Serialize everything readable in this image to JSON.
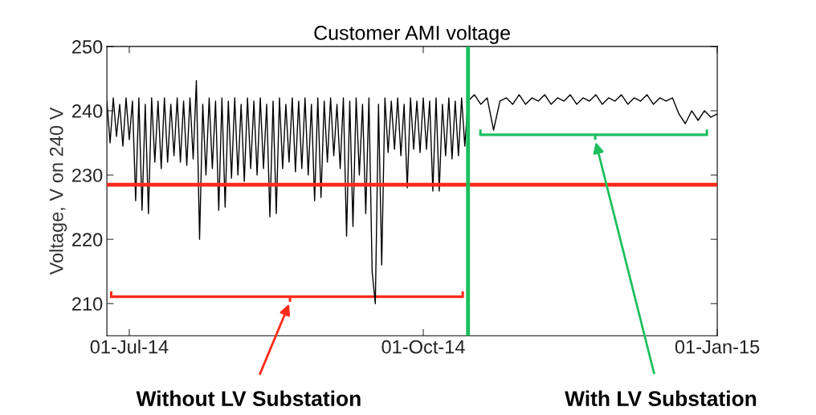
{
  "chart_data": {
    "type": "line",
    "title": "Customer AMI voltage",
    "ylabel": "Voltage, V on 240 V",
    "x": [
      "2014-06-24",
      "2014-06-25",
      "2014-06-26",
      "2014-06-27",
      "2014-06-28",
      "2014-06-29",
      "2014-06-30",
      "2014-07-01",
      "2014-07-02",
      "2014-07-03",
      "2014-07-04",
      "2014-07-05",
      "2014-07-06",
      "2014-07-07",
      "2014-07-08",
      "2014-07-09",
      "2014-07-10",
      "2014-07-11",
      "2014-07-12",
      "2014-07-13",
      "2014-07-14",
      "2014-07-15",
      "2014-07-16",
      "2014-07-17",
      "2014-07-18",
      "2014-07-19",
      "2014-07-20",
      "2014-07-21",
      "2014-07-22",
      "2014-07-23",
      "2014-07-24",
      "2014-07-25",
      "2014-07-26",
      "2014-07-27",
      "2014-07-28",
      "2014-07-29",
      "2014-07-30",
      "2014-07-31",
      "2014-08-01",
      "2014-08-02",
      "2014-08-03",
      "2014-08-04",
      "2014-08-05",
      "2014-08-06",
      "2014-08-07",
      "2014-08-08",
      "2014-08-09",
      "2014-08-10",
      "2014-08-11",
      "2014-08-12",
      "2014-08-13",
      "2014-08-14",
      "2014-08-15",
      "2014-08-16",
      "2014-08-17",
      "2014-08-18",
      "2014-08-19",
      "2014-08-20",
      "2014-08-21",
      "2014-08-22",
      "2014-08-23",
      "2014-08-24",
      "2014-08-25",
      "2014-08-26",
      "2014-08-27",
      "2014-08-28",
      "2014-08-29",
      "2014-08-30",
      "2014-08-31",
      "2014-09-01",
      "2014-09-02",
      "2014-09-03",
      "2014-09-04",
      "2014-09-05",
      "2014-09-06",
      "2014-09-07",
      "2014-09-08",
      "2014-09-09",
      "2014-09-10",
      "2014-09-11",
      "2014-09-12",
      "2014-09-13",
      "2014-09-14",
      "2014-09-15",
      "2014-09-16",
      "2014-09-17",
      "2014-09-18",
      "2014-09-19",
      "2014-09-20",
      "2014-09-21",
      "2014-09-22",
      "2014-09-23",
      "2014-09-24",
      "2014-09-25",
      "2014-09-26",
      "2014-09-27",
      "2014-09-28",
      "2014-09-29",
      "2014-09-30",
      "2014-10-01",
      "2014-10-02",
      "2014-10-03",
      "2014-10-04",
      "2014-10-05",
      "2014-10-06",
      "2014-10-07",
      "2014-10-08",
      "2014-10-09",
      "2014-10-10",
      "2014-10-11",
      "2014-10-12",
      "2014-10-13",
      "2014-10-14",
      "2014-10-15",
      "2014-10-17",
      "2014-10-19",
      "2014-10-21",
      "2014-10-23",
      "2014-10-25",
      "2014-10-27",
      "2014-10-29",
      "2014-10-31",
      "2014-11-02",
      "2014-11-04",
      "2014-11-06",
      "2014-11-08",
      "2014-11-10",
      "2014-11-12",
      "2014-11-14",
      "2014-11-16",
      "2014-11-18",
      "2014-11-20",
      "2014-11-22",
      "2014-11-24",
      "2014-11-26",
      "2014-11-28",
      "2014-11-30",
      "2014-12-02",
      "2014-12-04",
      "2014-12-06",
      "2014-12-08",
      "2014-12-10",
      "2014-12-12",
      "2014-12-14",
      "2014-12-16",
      "2014-12-18",
      "2014-12-20",
      "2014-12-22",
      "2014-12-24",
      "2014-12-26",
      "2014-12-28",
      "2014-12-30",
      "2015-01-01"
    ],
    "series": [
      {
        "color": "#000000",
        "values": [
          241.5,
          235,
          242,
          236,
          241,
          234.5,
          242,
          235.5,
          241.5,
          226,
          242,
          224.5,
          241,
          224,
          242,
          232,
          241.5,
          231,
          242,
          232,
          241,
          233,
          242,
          232,
          241.5,
          231.5,
          242,
          232.5,
          244.7,
          220,
          241,
          230,
          242,
          231,
          241.5,
          224.5,
          242,
          225,
          241.5,
          229.5,
          242,
          230,
          241,
          229,
          242,
          231,
          241.5,
          230,
          242,
          231,
          241,
          223.5,
          241.5,
          224,
          242,
          231,
          241,
          232,
          242,
          230.5,
          241.5,
          231,
          242,
          230,
          241,
          226,
          242,
          226.5,
          241.5,
          232,
          242,
          233,
          241,
          231,
          242,
          220.5,
          241.5,
          222,
          242,
          230,
          241,
          224,
          242,
          215,
          210,
          241,
          216,
          242,
          233.5,
          241.5,
          234,
          242,
          233,
          241,
          228,
          242,
          234,
          241.5,
          233.5,
          242,
          234,
          241.5,
          227.5,
          242,
          227.5,
          241,
          233,
          242,
          232.5,
          241.5,
          233,
          242,
          234.5,
          241.5,
          242.5,
          241,
          242,
          237,
          241.5,
          242,
          241,
          242.5,
          241,
          242,
          241.5,
          242.5,
          241,
          242,
          241.5,
          242.5,
          241,
          242,
          241.5,
          242.5,
          241,
          242,
          241.5,
          242.5,
          241,
          242,
          241.5,
          242.5,
          241,
          242,
          241.5,
          242,
          239.5,
          238,
          240,
          238.5,
          240,
          239,
          239.5
        ]
      }
    ],
    "xlim": [
      "2014-06-24",
      "2015-01-01"
    ],
    "xticks": [
      {
        "value": "2014-07-01",
        "label": "01-Jul-14"
      },
      {
        "value": "2014-10-01",
        "label": "01-Oct-14"
      },
      {
        "value": "2015-01-01",
        "label": "01-Jan-15"
      }
    ],
    "ylim": [
      205,
      250
    ],
    "yticks": [
      210,
      220,
      230,
      240,
      250
    ],
    "grid": false,
    "ref_lines": [
      {
        "axis": "y",
        "value": 228.5,
        "color": "#ff2a1a"
      },
      {
        "axis": "x",
        "value": "2014-10-15",
        "color": "#1dbf5e"
      }
    ],
    "annotations": [
      "Without LV Substation",
      "With LV Substation"
    ]
  }
}
